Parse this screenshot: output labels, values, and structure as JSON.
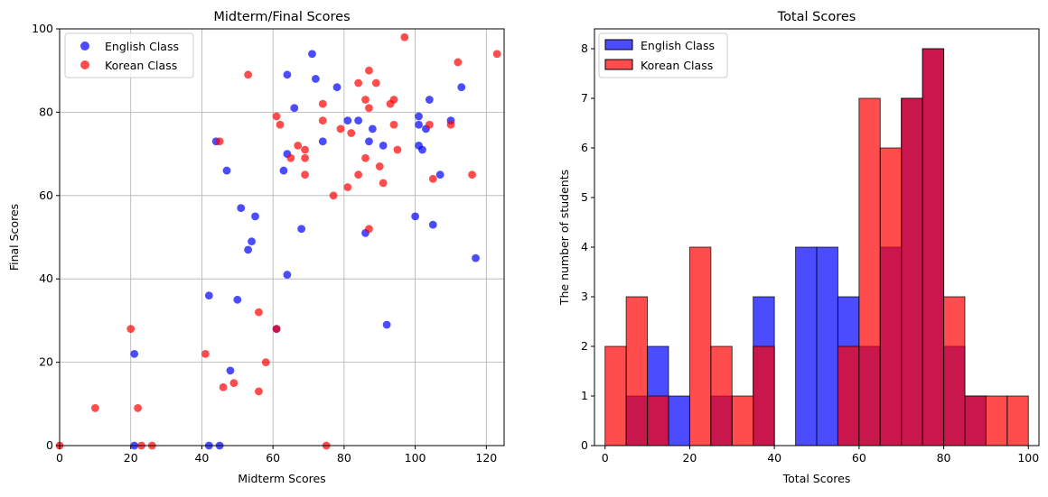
{
  "chart_data": [
    {
      "type": "scatter",
      "title": "Midterm/Final Scores",
      "xlabel": "Midterm Scores",
      "ylabel": "Final Scores",
      "xlim": [
        0,
        125
      ],
      "ylim": [
        0,
        100
      ],
      "xticks": [
        0,
        20,
        40,
        60,
        80,
        100,
        120
      ],
      "yticks": [
        0,
        20,
        40,
        60,
        80,
        100
      ],
      "grid": true,
      "legend_position": "top-left",
      "series": [
        {
          "name": "English Class",
          "color": "#0000ff",
          "points": [
            [
              21,
              22
            ],
            [
              21,
              0
            ],
            [
              42,
              36
            ],
            [
              42,
              0
            ],
            [
              45,
              0
            ],
            [
              44,
              73
            ],
            [
              47,
              66
            ],
            [
              48,
              18
            ],
            [
              50,
              35
            ],
            [
              51,
              57
            ],
            [
              53,
              47
            ],
            [
              54,
              49
            ],
            [
              55,
              55
            ],
            [
              61,
              28
            ],
            [
              63,
              66
            ],
            [
              64,
              89
            ],
            [
              64,
              70
            ],
            [
              64,
              41
            ],
            [
              66,
              81
            ],
            [
              68,
              52
            ],
            [
              71,
              94
            ],
            [
              72,
              88
            ],
            [
              74,
              73
            ],
            [
              78,
              86
            ],
            [
              81,
              78
            ],
            [
              84,
              78
            ],
            [
              86,
              51
            ],
            [
              87,
              73
            ],
            [
              88,
              76
            ],
            [
              91,
              72
            ],
            [
              92,
              29
            ],
            [
              100,
              55
            ],
            [
              101,
              79
            ],
            [
              101,
              77
            ],
            [
              101,
              72
            ],
            [
              102,
              71
            ],
            [
              103,
              76
            ],
            [
              104,
              83
            ],
            [
              105,
              53
            ],
            [
              107,
              65
            ],
            [
              110,
              78
            ],
            [
              113,
              86
            ],
            [
              117,
              45
            ]
          ]
        },
        {
          "name": "Korean Class",
          "color": "#ff0000",
          "points": [
            [
              0,
              0
            ],
            [
              10,
              9
            ],
            [
              20,
              28
            ],
            [
              22,
              9
            ],
            [
              23,
              0
            ],
            [
              26,
              0
            ],
            [
              41,
              22
            ],
            [
              45,
              73
            ],
            [
              46,
              14
            ],
            [
              49,
              15
            ],
            [
              53,
              89
            ],
            [
              56,
              32
            ],
            [
              56,
              13
            ],
            [
              58,
              20
            ],
            [
              61,
              79
            ],
            [
              61,
              28
            ],
            [
              62,
              77
            ],
            [
              65,
              69
            ],
            [
              67,
              72
            ],
            [
              69,
              71
            ],
            [
              69,
              69
            ],
            [
              69,
              65
            ],
            [
              74,
              82
            ],
            [
              74,
              78
            ],
            [
              75,
              0
            ],
            [
              77,
              60
            ],
            [
              79,
              76
            ],
            [
              81,
              62
            ],
            [
              82,
              75
            ],
            [
              84,
              87
            ],
            [
              84,
              65
            ],
            [
              86,
              83
            ],
            [
              86,
              69
            ],
            [
              87,
              90
            ],
            [
              87,
              81
            ],
            [
              87,
              52
            ],
            [
              89,
              87
            ],
            [
              90,
              67
            ],
            [
              91,
              63
            ],
            [
              93,
              82
            ],
            [
              94,
              83
            ],
            [
              94,
              77
            ],
            [
              95,
              71
            ],
            [
              97,
              98
            ],
            [
              104,
              77
            ],
            [
              105,
              64
            ],
            [
              110,
              77
            ],
            [
              112,
              92
            ],
            [
              116,
              65
            ],
            [
              123,
              94
            ]
          ]
        }
      ]
    },
    {
      "type": "bar",
      "subtype": "histogram",
      "title": "Total Scores",
      "xlabel": "Total Scores",
      "ylabel": "The number of students",
      "xlim": [
        -2.5,
        102.5
      ],
      "ylim": [
        0,
        8.4
      ],
      "xticks": [
        0,
        20,
        40,
        60,
        80,
        100
      ],
      "yticks": [
        0,
        1,
        2,
        3,
        4,
        5,
        6,
        7,
        8
      ],
      "bin_edges": [
        0,
        5,
        10,
        15,
        20,
        25,
        30,
        35,
        40,
        45,
        50,
        55,
        60,
        65,
        70,
        75,
        80,
        85,
        90,
        95,
        100
      ],
      "legend_position": "top-left",
      "series": [
        {
          "name": "English Class",
          "color": "#0000ff",
          "values": [
            0,
            1,
            2,
            1,
            0,
            1,
            0,
            3,
            0,
            4,
            4,
            3,
            2,
            4,
            7,
            8,
            2,
            1,
            0,
            0
          ]
        },
        {
          "name": "Korean Class",
          "color": "#ff0000",
          "values": [
            2,
            3,
            1,
            0,
            4,
            2,
            1,
            2,
            0,
            0,
            0,
            2,
            7,
            6,
            7,
            8,
            3,
            1,
            1,
            1
          ]
        }
      ]
    }
  ]
}
